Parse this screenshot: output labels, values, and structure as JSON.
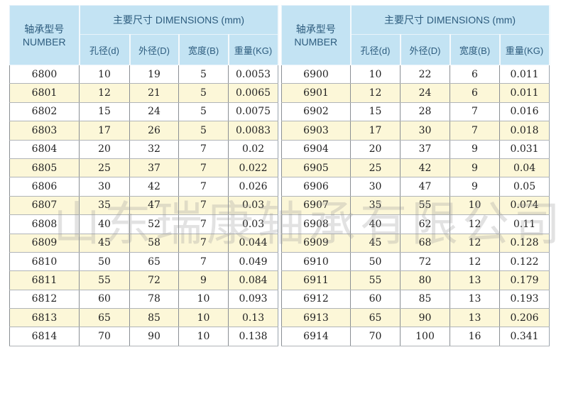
{
  "headers": {
    "number_cn": "轴承型号",
    "number_en": "NUMBER",
    "dimensions": "主要尺寸 DIMENSIONS (mm)",
    "columns": [
      "孔径(d)",
      "外径(D)",
      "宽度(B)",
      "重量(KG)"
    ]
  },
  "watermark": "山东瑞康轴承有限公司",
  "colors": {
    "header_bg": "#c3e3f3",
    "alt_row_bg": "#fcf7d8"
  },
  "tables": [
    {
      "rows": [
        [
          "6800",
          "10",
          "19",
          "5",
          "0.0053"
        ],
        [
          "6801",
          "12",
          "21",
          "5",
          "0.0065"
        ],
        [
          "6802",
          "15",
          "24",
          "5",
          "0.0075"
        ],
        [
          "6803",
          "17",
          "26",
          "5",
          "0.0083"
        ],
        [
          "6804",
          "20",
          "32",
          "7",
          "0.02"
        ],
        [
          "6805",
          "25",
          "37",
          "7",
          "0.022"
        ],
        [
          "6806",
          "30",
          "42",
          "7",
          "0.026"
        ],
        [
          "6807",
          "35",
          "47",
          "7",
          "0.03"
        ],
        [
          "6808",
          "40",
          "52",
          "7",
          "0.03"
        ],
        [
          "6809",
          "45",
          "58",
          "7",
          "0.044"
        ],
        [
          "6810",
          "50",
          "65",
          "7",
          "0.049"
        ],
        [
          "6811",
          "55",
          "72",
          "9",
          "0.084"
        ],
        [
          "6812",
          "60",
          "78",
          "10",
          "0.093"
        ],
        [
          "6813",
          "65",
          "85",
          "10",
          "0.13"
        ],
        [
          "6814",
          "70",
          "90",
          "10",
          "0.138"
        ]
      ]
    },
    {
      "rows": [
        [
          "6900",
          "10",
          "22",
          "6",
          "0.011"
        ],
        [
          "6901",
          "12",
          "24",
          "6",
          "0.011"
        ],
        [
          "6902",
          "15",
          "28",
          "7",
          "0.016"
        ],
        [
          "6903",
          "17",
          "30",
          "7",
          "0.018"
        ],
        [
          "6904",
          "20",
          "37",
          "9",
          "0.031"
        ],
        [
          "6905",
          "25",
          "42",
          "9",
          "0.04"
        ],
        [
          "6906",
          "30",
          "47",
          "9",
          "0.05"
        ],
        [
          "6907",
          "35",
          "55",
          "10",
          "0.074"
        ],
        [
          "6908",
          "40",
          "62",
          "12",
          "0.11"
        ],
        [
          "6909",
          "45",
          "68",
          "12",
          "0.128"
        ],
        [
          "6910",
          "50",
          "72",
          "12",
          "0.122"
        ],
        [
          "6911",
          "55",
          "80",
          "13",
          "0.179"
        ],
        [
          "6912",
          "60",
          "85",
          "13",
          "0.193"
        ],
        [
          "6913",
          "65",
          "90",
          "13",
          "0.206"
        ],
        [
          "6914",
          "70",
          "100",
          "16",
          "0.341"
        ]
      ]
    }
  ]
}
